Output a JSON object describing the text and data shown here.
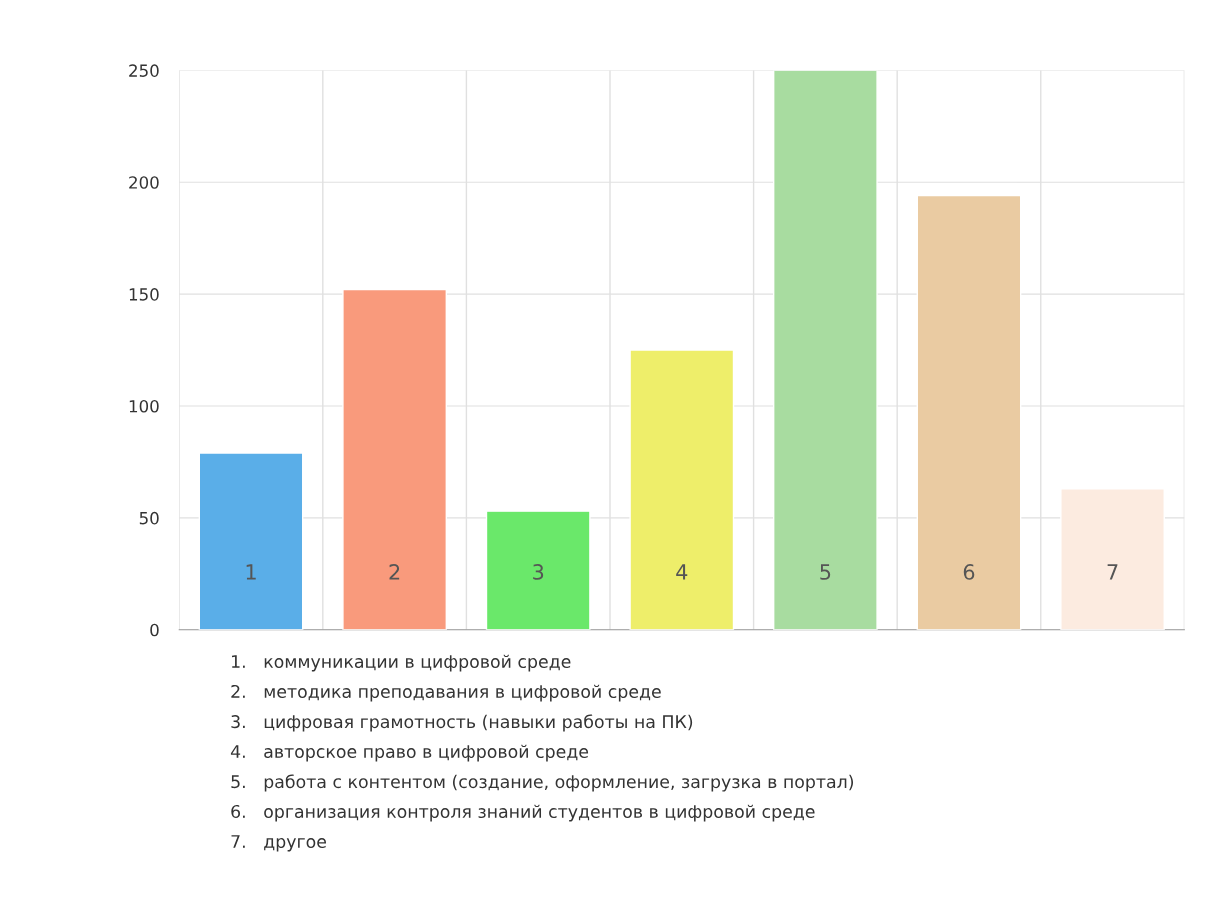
{
  "chart_data": {
    "type": "bar",
    "categories": [
      "1",
      "2",
      "3",
      "4",
      "5",
      "6",
      "7"
    ],
    "values": [
      79,
      152,
      53,
      125,
      250,
      194,
      63
    ],
    "colors": [
      "#5aaee8",
      "#f99a7c",
      "#6ae86a",
      "#eeee6a",
      "#a8dca0",
      "#eacba2",
      "#fcebe0"
    ],
    "ylim": [
      0,
      250
    ],
    "yticks": [
      0,
      50,
      100,
      150,
      200,
      250
    ],
    "grid": true,
    "annotations": [
      "1.   коммуникации в цифровой среде",
      "2.   методика преподавания в цифровой среде",
      "3.   цифровая грамотность (навыки работы на ПК)",
      "4.   авторское право в цифровой среде",
      "5.   работа с контентом (создание, оформление, загрузка в портал)",
      "6.   организация контроля знаний студентов в цифровой среде",
      "7.   другое"
    ]
  }
}
